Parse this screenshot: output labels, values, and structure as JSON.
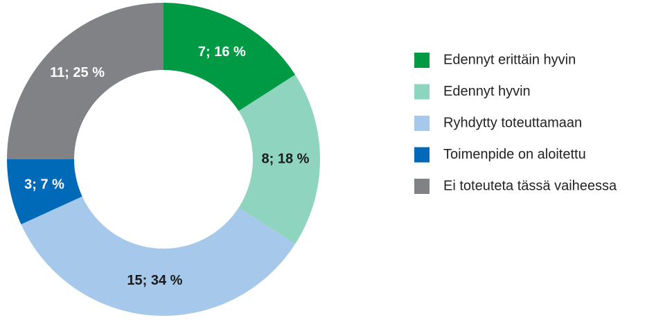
{
  "chart_data": {
    "type": "pie",
    "donut": true,
    "categories": [
      "Edennyt erittäin hyvin",
      "Edennyt hyvin",
      "Ryhdytty toteuttamaan",
      "Toimenpide on aloitettu",
      "Ei toteuteta tässä vaiheessa"
    ],
    "values": [
      7,
      8,
      15,
      3,
      11
    ],
    "value_labels": [
      "7; 16 %",
      "8; 18 %",
      "15; 34 %",
      "3; 7 %",
      "11; 25 %"
    ],
    "colors": [
      "#009a44",
      "#8fd4be",
      "#a5c8eb",
      "#006ab8",
      "#808285"
    ],
    "legend": "right"
  }
}
